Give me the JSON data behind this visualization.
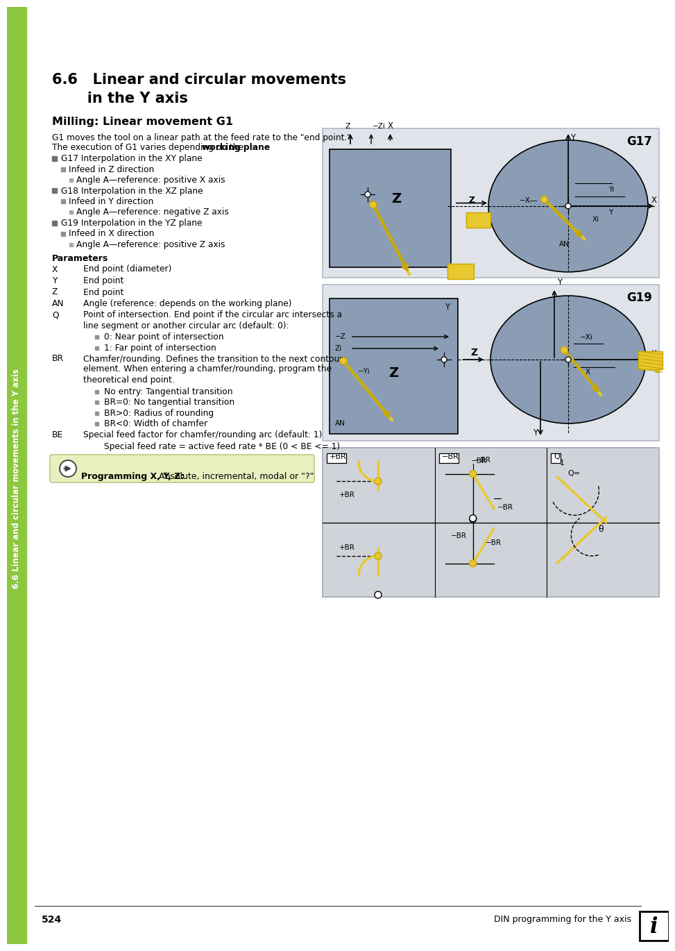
{
  "page_bg": "#ffffff",
  "sidebar_color": "#8dc63f",
  "sidebar_text": "6.6 Linear and circular movements in the Y axis",
  "title_line1": "6.6   Linear and circular movements",
  "title_line2": "       in the Y axis",
  "subtitle": "Milling: Linear movement G1",
  "intro1": "G1 moves the tool on a linear path at the feed rate to the \"end point.\"",
  "intro2a": "The execution of G1 varies depending on the ",
  "intro2b": "working plane",
  "intro2c": ":",
  "bullet_items": [
    {
      "level": 0,
      "text": "G17 Interpolation in the XY plane"
    },
    {
      "level": 1,
      "text": "Infeed in Z direction"
    },
    {
      "level": 2,
      "text": "Angle A—reference: positive X axis"
    },
    {
      "level": 0,
      "text": "G18 Interpolation in the XZ plane"
    },
    {
      "level": 1,
      "text": "Infeed in Y direction"
    },
    {
      "level": 2,
      "text": "Angle A—reference: negative Z axis"
    },
    {
      "level": 0,
      "text": "G19 Interpolation in the YZ plane"
    },
    {
      "level": 1,
      "text": "Infeed in X direction"
    },
    {
      "level": 2,
      "text": "Angle A—reference: positive Z axis"
    }
  ],
  "params_header": "Parameters",
  "params": [
    {
      "key": "X",
      "key_bold": false,
      "value": "End point (diameter)",
      "sub": false,
      "indent": false
    },
    {
      "key": "Y",
      "key_bold": false,
      "value": "End point",
      "sub": false,
      "indent": false
    },
    {
      "key": "Z",
      "key_bold": false,
      "value": "End point",
      "sub": false,
      "indent": false
    },
    {
      "key": "AN",
      "key_bold": false,
      "value": "Angle (reference: depends on the working plane)",
      "sub": false,
      "indent": false
    },
    {
      "key": "Q",
      "key_bold": false,
      "value": "Point of intersection. End point if the circular arc intersects a\nline segment or another circular arc (default: 0):",
      "sub": false,
      "indent": false
    },
    {
      "key": "",
      "key_bold": false,
      "value": "0: Near point of intersection",
      "sub": true,
      "indent": false
    },
    {
      "key": "",
      "key_bold": false,
      "value": "1: Far point of intersection",
      "sub": true,
      "indent": false
    },
    {
      "key": "BR",
      "key_bold": false,
      "value": "Chamfer/rounding. Defines the transition to the next contour\nelement. When entering a chamfer/rounding, program the\ntheoretical end point.",
      "sub": false,
      "indent": false
    },
    {
      "key": "",
      "key_bold": false,
      "value": "No entry: Tangential transition",
      "sub": true,
      "indent": false
    },
    {
      "key": "",
      "key_bold": false,
      "value": "BR=0: No tangential transition",
      "sub": true,
      "indent": false
    },
    {
      "key": "",
      "key_bold": false,
      "value": "BR>0: Radius of rounding",
      "sub": true,
      "indent": false
    },
    {
      "key": "",
      "key_bold": false,
      "value": "BR<0: Width of chamfer",
      "sub": true,
      "indent": false
    },
    {
      "key": "BE",
      "key_bold": false,
      "value": "Special feed factor for chamfer/rounding arc (default: 1)",
      "sub": false,
      "indent": false
    },
    {
      "key": "",
      "key_bold": false,
      "value": "Special feed rate = active feed rate * BE (0 < BE <= 1)",
      "sub": false,
      "indent": true
    }
  ],
  "note_bold": "Programming X, Y, Z:",
  "note_normal": " Absolute, incremental, modal or \"?\"",
  "page_num": "524",
  "footer_text": "DIN programming for the Y axis",
  "note_bg": "#e8f0c0",
  "diag_bg": "#d8dce4",
  "diag_rect_fill": "#8a9db5",
  "diag_ellipse_fill": "#8a9db5",
  "yellow_fill": "#e8c830",
  "yellow_line": "#c8a800"
}
